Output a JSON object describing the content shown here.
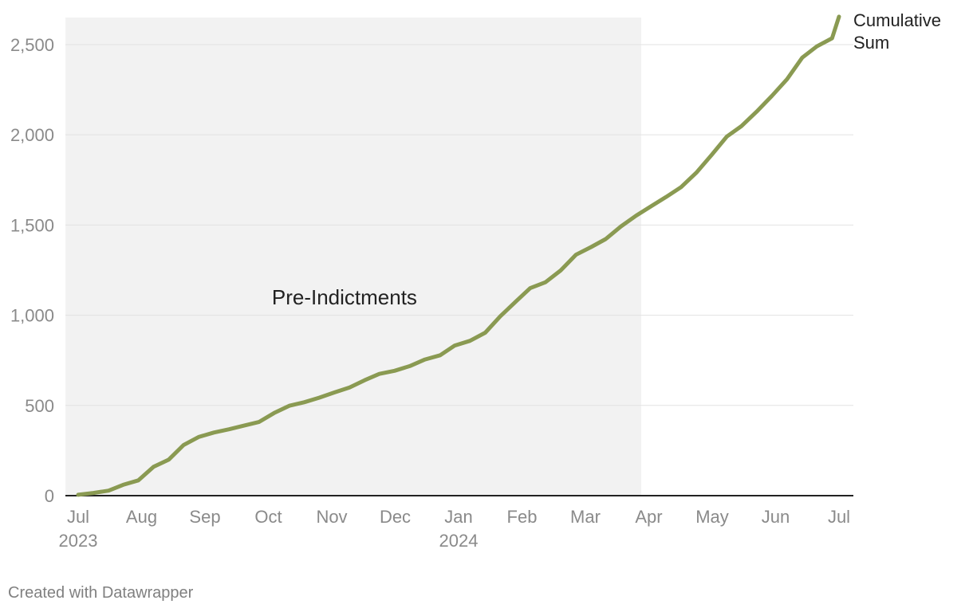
{
  "chart_data": {
    "type": "line",
    "ylim": [
      0,
      2650
    ],
    "yticks": [
      0,
      500,
      1000,
      1500,
      2000,
      2500
    ],
    "ytick_labels": [
      "0",
      "500",
      "1,000",
      "1,500",
      "2,000",
      "2,500"
    ],
    "x_domain_months": [
      0,
      12
    ],
    "xticks": [
      {
        "month": 0,
        "label": "Jul",
        "year": "2023"
      },
      {
        "month": 1,
        "label": "Aug",
        "year": ""
      },
      {
        "month": 2,
        "label": "Sep",
        "year": ""
      },
      {
        "month": 3,
        "label": "Oct",
        "year": ""
      },
      {
        "month": 4,
        "label": "Nov",
        "year": ""
      },
      {
        "month": 5,
        "label": "Dec",
        "year": ""
      },
      {
        "month": 6,
        "label": "Jan",
        "year": "2024"
      },
      {
        "month": 7,
        "label": "Feb",
        "year": ""
      },
      {
        "month": 8,
        "label": "Mar",
        "year": ""
      },
      {
        "month": 9,
        "label": "Apr",
        "year": ""
      },
      {
        "month": 10,
        "label": "May",
        "year": ""
      },
      {
        "month": 11,
        "label": "Jun",
        "year": ""
      },
      {
        "month": 12,
        "label": "Jul",
        "year": ""
      }
    ],
    "shaded_region": {
      "label": "Pre-Indictments",
      "x_start": -0.2,
      "x_end": 8.88,
      "label_x": 4.2,
      "label_y": 1100
    },
    "series": [
      {
        "name": "Cumulative Sum",
        "color": "#8a9a52",
        "x": [
          0,
          0.24,
          0.48,
          0.71,
          0.95,
          1.19,
          1.43,
          1.66,
          1.9,
          2.14,
          2.38,
          2.61,
          2.85,
          3.09,
          3.33,
          3.57,
          3.8,
          4.04,
          4.28,
          4.52,
          4.75,
          4.99,
          5.23,
          5.47,
          5.71,
          5.94,
          6.18,
          6.42,
          6.66,
          6.9,
          7.13,
          7.37,
          7.61,
          7.85,
          8.09,
          8.32,
          8.56,
          8.8,
          9.04,
          9.27,
          9.51,
          9.75,
          9.99,
          10.23,
          10.46,
          10.7,
          10.94,
          11.18,
          11.42,
          11.65,
          11.89
        ],
        "values": [
          5,
          15,
          28,
          60,
          85,
          160,
          200,
          280,
          325,
          350,
          368,
          388,
          408,
          458,
          498,
          518,
          543,
          572,
          600,
          640,
          675,
          692,
          718,
          755,
          778,
          832,
          858,
          903,
          995,
          1075,
          1150,
          1183,
          1248,
          1335,
          1378,
          1422,
          1492,
          1552,
          1605,
          1655,
          1710,
          1790,
          1888,
          1990,
          2048,
          2128,
          2215,
          2308,
          2428,
          2490,
          2535
        ]
      }
    ],
    "series_end": {
      "x": 12,
      "value": 2655
    },
    "series_label_lines": [
      "Cumulative",
      "Sum"
    ]
  },
  "footer": {
    "text": "Created with Datawrapper"
  }
}
